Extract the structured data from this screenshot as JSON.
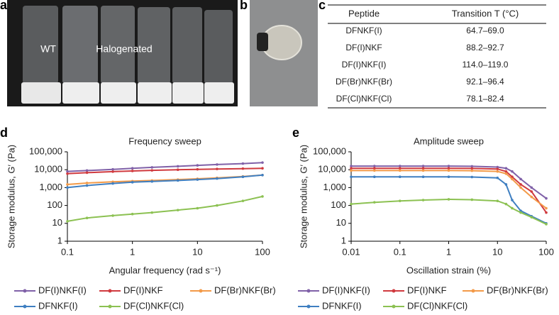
{
  "panel_a": {
    "label": "a",
    "texts": [
      "WT",
      "Halogenated"
    ]
  },
  "panel_b": {
    "label": "b"
  },
  "panel_c": {
    "label": "c",
    "table": {
      "header": [
        "Peptide",
        "Transition T (°C)"
      ],
      "rows": [
        [
          "DFNKF(I)",
          "64.7–69.0"
        ],
        [
          "DF(I)NKF",
          "88.2–92.7"
        ],
        [
          "DF(I)NKF(I)",
          "114.0–119.0"
        ],
        [
          "DF(Br)NKF(Br)",
          "92.1–96.4"
        ],
        [
          "DF(Cl)NKF(Cl)",
          "78.1–82.4"
        ]
      ]
    }
  },
  "chart_data": [
    {
      "type": "line",
      "panel_label": "d",
      "title": "Frequency sweep",
      "x_label": "Angular frequency (rad s⁻¹)",
      "y_label": "Storage modulus, G′ (Pa)",
      "xlog": true,
      "ylog": true,
      "legend": "bottom",
      "x": [
        0.1,
        0.2,
        0.5,
        1,
        2,
        5,
        10,
        20,
        50,
        100
      ],
      "xlim": [
        0.1,
        100
      ],
      "xticks": [
        0.1,
        1,
        10,
        100
      ],
      "ylim": [
        1,
        100000
      ],
      "yticks": [
        1,
        10,
        100,
        {
          "value": 1000,
          "label": "1,000"
        },
        {
          "value": 10000,
          "label": "10,000"
        },
        {
          "value": 100000,
          "label": "100,000"
        }
      ],
      "series": [
        {
          "name": "DF(I)NKF(I)",
          "color": "#8061a8",
          "values": [
            8000,
            9000,
            10500,
            12000,
            13500,
            15500,
            17500,
            19500,
            22000,
            25000
          ]
        },
        {
          "name": "DF(I)NKF",
          "color": "#d03a3f",
          "values": [
            6000,
            6800,
            7800,
            8500,
            9200,
            10000,
            10500,
            11000,
            11500,
            12000
          ]
        },
        {
          "name": "DF(Br)NKF(Br)",
          "color": "#f39a48",
          "values": [
            1500,
            1800,
            2100,
            2300,
            2500,
            2800,
            3100,
            3500,
            4200,
            5000
          ]
        },
        {
          "name": "DFNKF(I)",
          "color": "#3f7fc1",
          "values": [
            1000,
            1300,
            1700,
            2000,
            2200,
            2500,
            2800,
            3200,
            4000,
            5000
          ]
        },
        {
          "name": "DF(Cl)NKF(Cl)",
          "color": "#8cc152",
          "values": [
            13,
            20,
            27,
            33,
            40,
            55,
            70,
            100,
            180,
            320
          ]
        }
      ]
    },
    {
      "type": "line",
      "panel_label": "e",
      "title": "Amplitude sweep",
      "x_label": "Oscillation strain (%)",
      "y_label": "Storage modulus, G′ (Pa)",
      "xlog": true,
      "ylog": true,
      "legend": "bottom",
      "x": [
        0.01,
        0.03,
        0.1,
        0.3,
        1,
        3,
        10,
        15,
        20,
        30,
        50,
        100
      ],
      "xlim": [
        0.01,
        100
      ],
      "xticks": [
        0.01,
        0.1,
        1,
        10,
        100
      ],
      "ylim": [
        1,
        100000
      ],
      "yticks": [
        1,
        10,
        100,
        {
          "value": 1000,
          "label": "1,000"
        },
        {
          "value": 10000,
          "label": "10,000"
        },
        {
          "value": 100000,
          "label": "100,000"
        }
      ],
      "series": [
        {
          "name": "DF(I)NKF(I)",
          "color": "#8061a8",
          "values": [
            16000,
            16000,
            16000,
            16000,
            16000,
            15500,
            14000,
            12000,
            8000,
            3000,
            1000,
            250
          ]
        },
        {
          "name": "DF(I)NKF",
          "color": "#d03a3f",
          "values": [
            12000,
            12000,
            12000,
            12000,
            12000,
            11800,
            11000,
            8000,
            4000,
            1500,
            600,
            40
          ]
        },
        {
          "name": "DF(Br)NKF(Br)",
          "color": "#f39a48",
          "values": [
            9000,
            9000,
            9000,
            9000,
            9000,
            8800,
            8000,
            6000,
            3000,
            1000,
            300,
            70
          ]
        },
        {
          "name": "DFNKF(I)",
          "color": "#3f7fc1",
          "values": [
            4000,
            4000,
            4000,
            4000,
            4000,
            3900,
            3500,
            1500,
            200,
            50,
            25,
            10
          ]
        },
        {
          "name": "DF(Cl)NKF(Cl)",
          "color": "#8cc152",
          "values": [
            120,
            150,
            180,
            200,
            220,
            210,
            180,
            120,
            70,
            40,
            22,
            9
          ]
        }
      ]
    }
  ]
}
